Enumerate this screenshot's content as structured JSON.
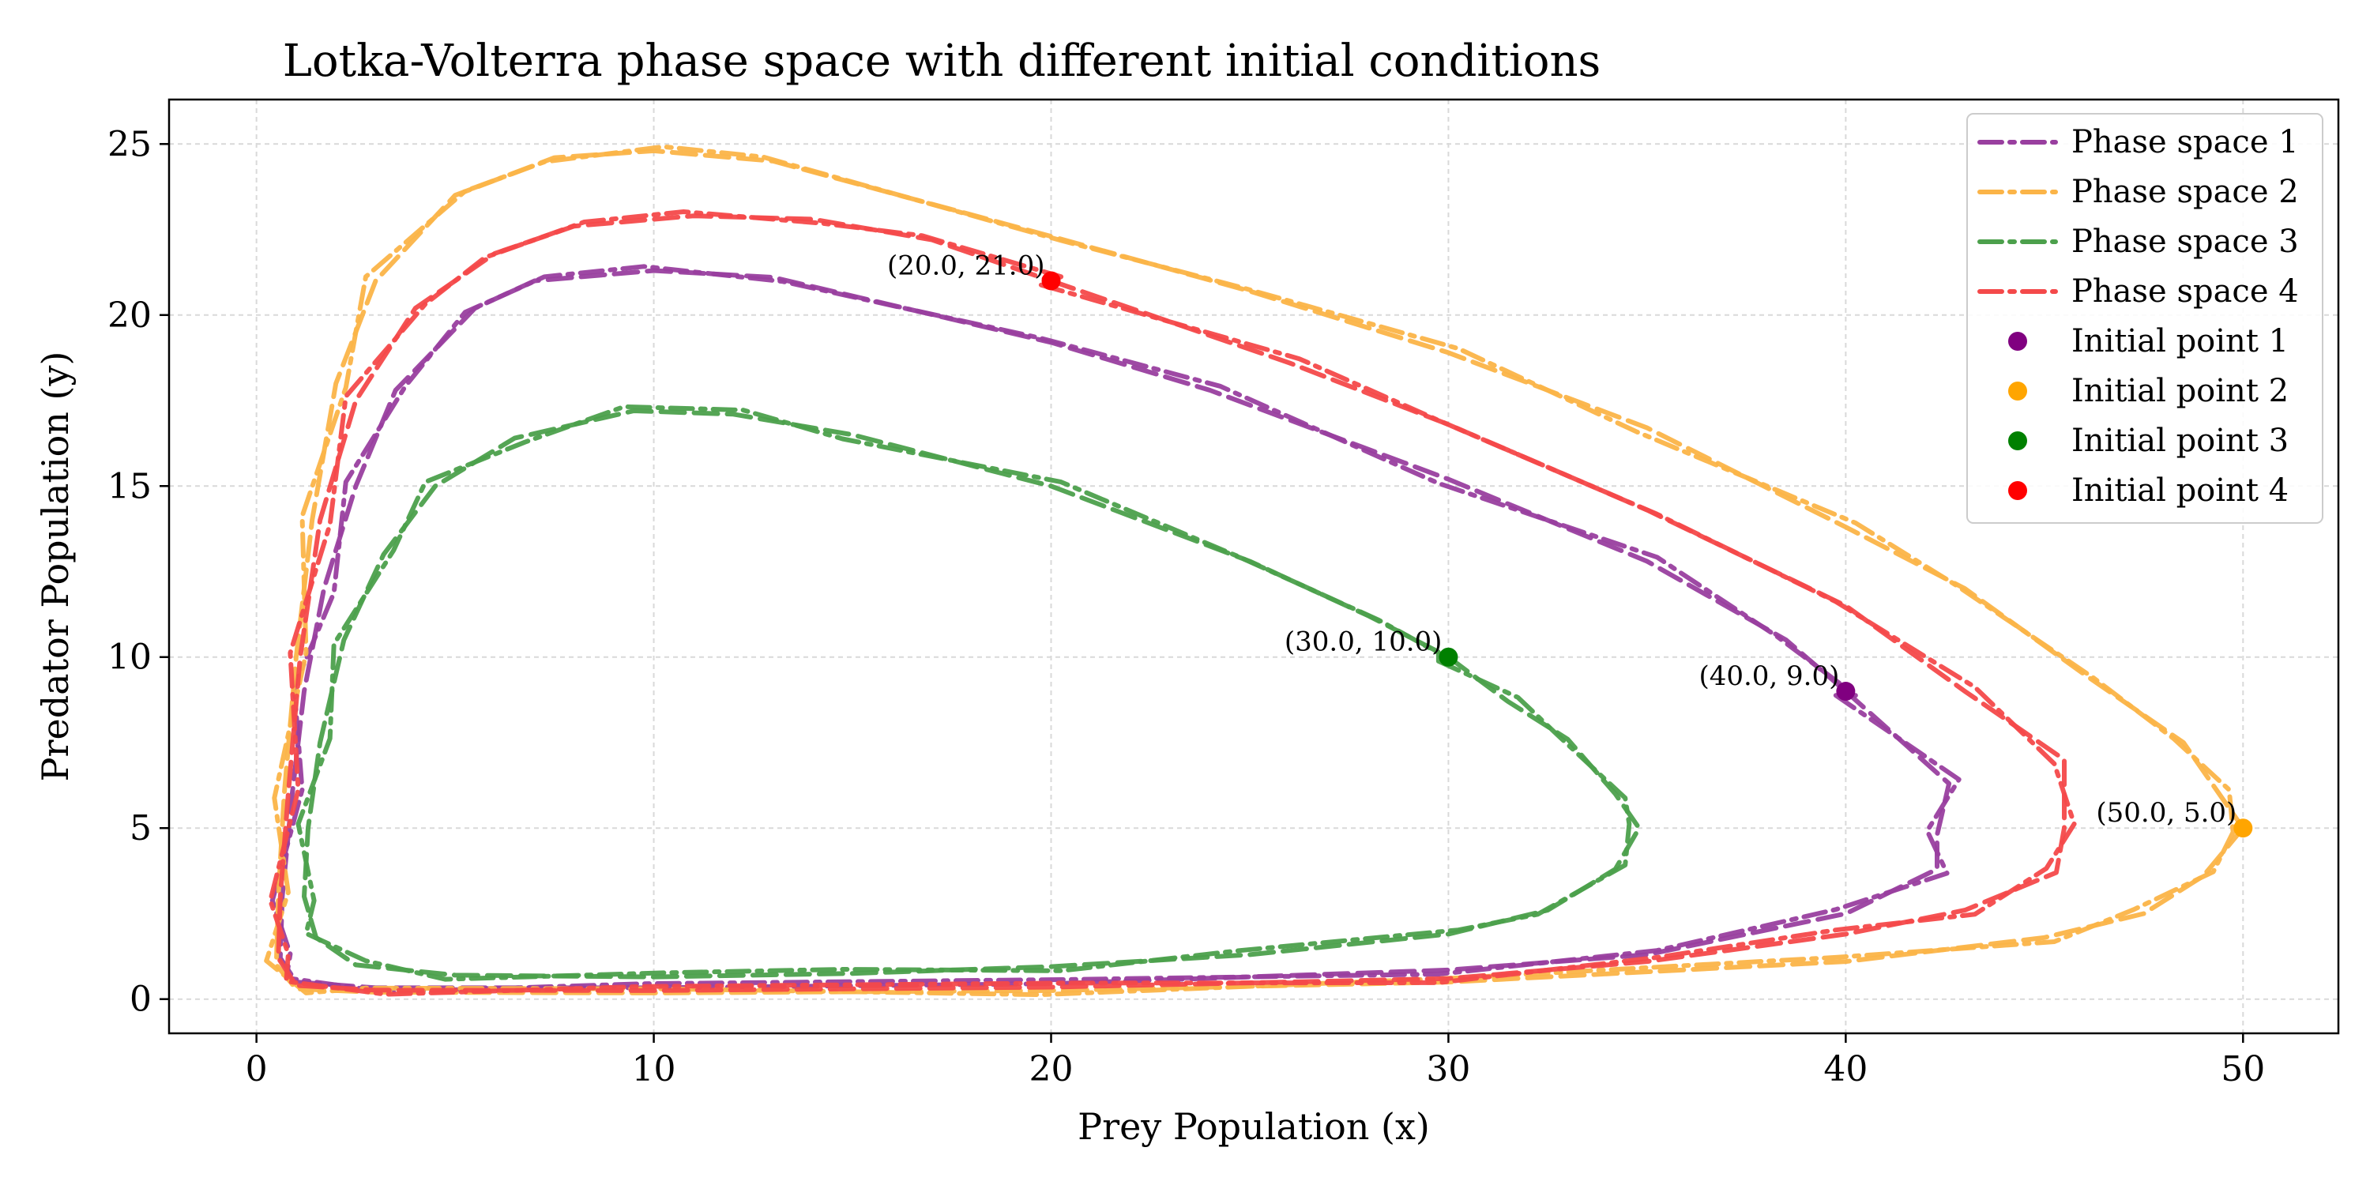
{
  "chart_data": {
    "type": "line",
    "title": "Lotka-Volterra phase space with different initial conditions",
    "xlabel": "Prey Population (x)",
    "ylabel": "Predator Population (y)",
    "xlim": [
      -2.2,
      52.4
    ],
    "ylim": [
      -1.0,
      26.3
    ],
    "xticks": [
      0,
      10,
      20,
      30,
      40,
      50
    ],
    "yticks": [
      0,
      5,
      10,
      15,
      20,
      25
    ],
    "grid": true,
    "legend_position": "top-right",
    "series": [
      {
        "name": "Phase space 1",
        "color": "#993f9f",
        "points": [
          [
            40.0,
            9.0
          ],
          [
            42.6,
            6.3
          ],
          [
            42.3,
            4.8
          ],
          [
            42.3,
            3.8
          ],
          [
            40.0,
            2.5
          ],
          [
            35.0,
            1.3
          ],
          [
            30.0,
            0.85
          ],
          [
            20.0,
            0.45
          ],
          [
            10.0,
            0.33
          ],
          [
            3.0,
            0.33
          ],
          [
            1.0,
            0.5
          ],
          [
            0.6,
            1.2
          ],
          [
            0.65,
            3.0
          ],
          [
            0.9,
            6.0
          ],
          [
            1.2,
            9.0
          ],
          [
            1.7,
            12.0
          ],
          [
            2.5,
            15.0
          ],
          [
            3.5,
            17.8
          ],
          [
            5.5,
            20.2
          ],
          [
            7.0,
            21.0
          ],
          [
            10.0,
            21.3
          ],
          [
            13.0,
            21.1
          ],
          [
            20.0,
            19.2
          ],
          [
            24.0,
            17.8
          ],
          [
            30.0,
            15.2
          ],
          [
            35.0,
            12.8
          ],
          [
            38.5,
            10.5
          ],
          [
            40.0,
            9.0
          ]
        ]
      },
      {
        "name": "Phase space 2",
        "color": "#fbb448",
        "points": [
          [
            50.0,
            5.0
          ],
          [
            49.0,
            3.6
          ],
          [
            47.5,
            2.5
          ],
          [
            45.0,
            1.8
          ],
          [
            40.0,
            1.1
          ],
          [
            30.0,
            0.5
          ],
          [
            20.0,
            0.25
          ],
          [
            10.0,
            0.18
          ],
          [
            3.0,
            0.2
          ],
          [
            1.0,
            0.3
          ],
          [
            0.5,
            1.0
          ],
          [
            0.55,
            3.0
          ],
          [
            0.7,
            6.0
          ],
          [
            1.0,
            10.0
          ],
          [
            1.4,
            14.0
          ],
          [
            2.0,
            18.0
          ],
          [
            3.0,
            21.0
          ],
          [
            5.0,
            23.5
          ],
          [
            7.5,
            24.6
          ],
          [
            10.0,
            24.8
          ],
          [
            13.0,
            24.5
          ],
          [
            20.0,
            22.3
          ],
          [
            25.0,
            20.7
          ],
          [
            30.0,
            18.9
          ],
          [
            35.0,
            16.7
          ],
          [
            40.0,
            13.8
          ],
          [
            43.0,
            12.0
          ],
          [
            46.0,
            9.5
          ],
          [
            48.5,
            7.5
          ],
          [
            49.4,
            6.0
          ],
          [
            50.0,
            5.0
          ]
        ]
      },
      {
        "name": "Phase space 3",
        "color": "#4ca04c",
        "points": [
          [
            30.0,
            10.0
          ],
          [
            31.5,
            8.7
          ],
          [
            33.0,
            7.6
          ],
          [
            34.2,
            6.0
          ],
          [
            34.8,
            5.0
          ],
          [
            34.2,
            3.8
          ],
          [
            32.5,
            2.6
          ],
          [
            30.0,
            1.9
          ],
          [
            25.0,
            1.3
          ],
          [
            20.0,
            0.95
          ],
          [
            15.0,
            0.75
          ],
          [
            10.0,
            0.65
          ],
          [
            5.0,
            0.7
          ],
          [
            2.5,
            1.0
          ],
          [
            1.5,
            1.8
          ],
          [
            1.2,
            3.0
          ],
          [
            1.3,
            5.0
          ],
          [
            1.6,
            7.5
          ],
          [
            2.2,
            10.5
          ],
          [
            3.2,
            13.0
          ],
          [
            4.5,
            15.0
          ],
          [
            6.5,
            16.4
          ],
          [
            9.5,
            17.2
          ],
          [
            12.0,
            17.1
          ],
          [
            15.0,
            16.5
          ],
          [
            20.0,
            15.0
          ],
          [
            25.0,
            12.8
          ],
          [
            28.0,
            11.2
          ],
          [
            30.0,
            10.0
          ]
        ]
      },
      {
        "name": "Phase space 4",
        "color": "#f4494a",
        "points": [
          [
            20.0,
            21.0
          ],
          [
            26.0,
            18.6
          ],
          [
            30.0,
            16.8
          ],
          [
            35.0,
            14.3
          ],
          [
            40.0,
            11.5
          ],
          [
            43.0,
            9.0
          ],
          [
            45.5,
            7.0
          ],
          [
            45.5,
            5.0
          ],
          [
            45.3,
            3.7
          ],
          [
            43.0,
            2.6
          ],
          [
            40.0,
            1.9
          ],
          [
            35.0,
            1.1
          ],
          [
            30.0,
            0.6
          ],
          [
            20.0,
            0.35
          ],
          [
            10.0,
            0.25
          ],
          [
            3.0,
            0.26
          ],
          [
            1.0,
            0.4
          ],
          [
            0.55,
            1.2
          ],
          [
            0.6,
            3.0
          ],
          [
            0.8,
            6.0
          ],
          [
            1.1,
            10.0
          ],
          [
            1.6,
            14.0
          ],
          [
            2.5,
            17.5
          ],
          [
            4.0,
            20.2
          ],
          [
            6.0,
            21.8
          ],
          [
            8.0,
            22.6
          ],
          [
            11.0,
            22.9
          ],
          [
            14.0,
            22.8
          ],
          [
            17.0,
            22.2
          ],
          [
            20.0,
            21.0
          ]
        ]
      }
    ],
    "initial_points": [
      {
        "name": "Initial point 1",
        "color": "#800080",
        "x": 40.0,
        "y": 9.0,
        "label": "(40.0, 9.0)"
      },
      {
        "name": "Initial point 2",
        "color": "#ffa500",
        "x": 50.0,
        "y": 5.0,
        "label": "(50.0, 5.0)"
      },
      {
        "name": "Initial point 3",
        "color": "#008000",
        "x": 30.0,
        "y": 10.0,
        "label": "(30.0, 10.0)"
      },
      {
        "name": "Initial point 4",
        "color": "#ff0000",
        "x": 20.0,
        "y": 21.0,
        "label": "(20.0, 21.0)"
      }
    ]
  }
}
